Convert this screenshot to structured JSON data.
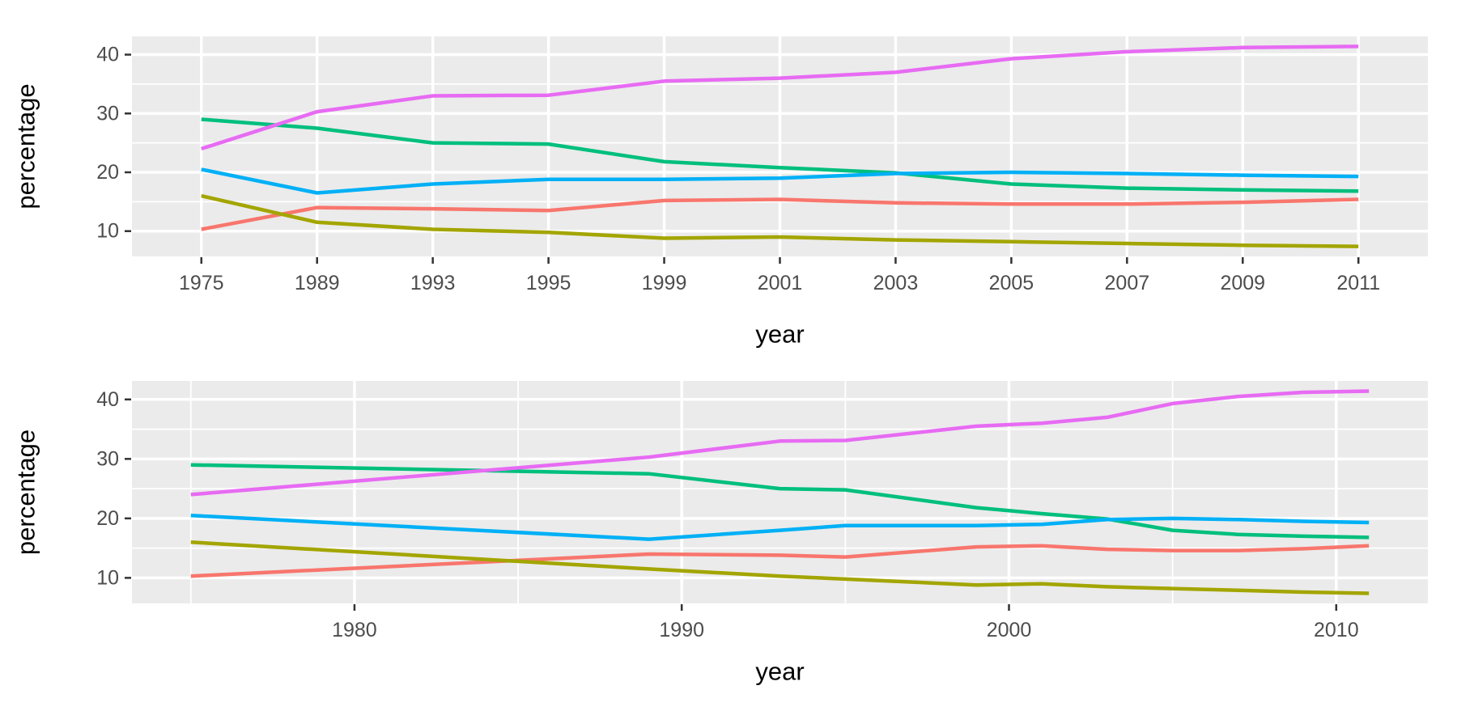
{
  "figure": {
    "background": "#FFFFFF",
    "description": "Two stacked ggplot-style line charts of the same five percentage series; top chart uses a discrete year axis, bottom chart uses a continuous year axis"
  },
  "style": {
    "panel_background": "#EBEBEB",
    "grid_color": "#FFFFFF",
    "tick_mark_color": "#333333",
    "tick_label_color": "#4D4D4D",
    "axis_title_color": "#000000",
    "series_palette": [
      "#F8766D",
      "#A3A500",
      "#00BF7D",
      "#00B0F6",
      "#E76BF3"
    ]
  },
  "chart_data": [
    {
      "type": "line",
      "x_type": "discrete",
      "title": "",
      "xlabel": "year",
      "ylabel": "percentage",
      "x": [
        1975,
        1989,
        1993,
        1995,
        1999,
        2001,
        2003,
        2005,
        2007,
        2009,
        2011
      ],
      "x_tick_labels": [
        "1975",
        "1989",
        "1993",
        "1995",
        "1999",
        "2001",
        "2003",
        "2005",
        "2007",
        "2009",
        "2011"
      ],
      "y_tick_labels": [
        "10",
        "20",
        "30",
        "40"
      ],
      "y_major": [
        10,
        20,
        30,
        40
      ],
      "y_minor": [
        15,
        25,
        35
      ],
      "ylim": [
        5.7,
        43.1
      ],
      "grid": true,
      "legend": "none",
      "series": [
        {
          "name": "red",
          "color": "#F8766D",
          "values": [
            10.3,
            14.0,
            13.8,
            13.5,
            15.2,
            15.4,
            14.8,
            14.6,
            14.6,
            14.9,
            15.4
          ]
        },
        {
          "name": "olive",
          "color": "#A3A500",
          "values": [
            16.0,
            11.5,
            10.3,
            9.8,
            8.8,
            9.0,
            8.5,
            8.2,
            7.9,
            7.6,
            7.4
          ]
        },
        {
          "name": "green",
          "color": "#00BF7D",
          "values": [
            29.0,
            27.5,
            25.0,
            24.8,
            21.8,
            20.8,
            19.9,
            18.0,
            17.3,
            17.0,
            16.8
          ]
        },
        {
          "name": "blue",
          "color": "#00B0F6",
          "values": [
            20.5,
            16.5,
            18.0,
            18.8,
            18.8,
            19.0,
            19.8,
            20.0,
            19.8,
            19.5,
            19.3
          ]
        },
        {
          "name": "magenta",
          "color": "#E76BF3",
          "values": [
            24.0,
            30.3,
            33.0,
            33.1,
            35.5,
            36.0,
            37.0,
            39.3,
            40.5,
            41.2,
            41.4
          ]
        }
      ]
    },
    {
      "type": "line",
      "x_type": "continuous",
      "title": "",
      "xlabel": "year",
      "ylabel": "percentage",
      "x": [
        1975,
        1989,
        1993,
        1995,
        1999,
        2001,
        2003,
        2005,
        2007,
        2009,
        2011
      ],
      "x_major": [
        1980,
        1990,
        2000,
        2010
      ],
      "x_minor": [
        1975,
        1985,
        1995,
        2005
      ],
      "x_tick_labels": [
        "1980",
        "1990",
        "2000",
        "2010"
      ],
      "y_tick_labels": [
        "10",
        "20",
        "30",
        "40"
      ],
      "y_major": [
        10,
        20,
        30,
        40
      ],
      "y_minor": [
        15,
        25,
        35
      ],
      "xlim": [
        1973.2,
        2012.8
      ],
      "ylim": [
        5.7,
        43.1
      ],
      "grid": true,
      "legend": "none",
      "series": [
        {
          "name": "red",
          "color": "#F8766D",
          "values": [
            10.3,
            14.0,
            13.8,
            13.5,
            15.2,
            15.4,
            14.8,
            14.6,
            14.6,
            14.9,
            15.4
          ]
        },
        {
          "name": "olive",
          "color": "#A3A500",
          "values": [
            16.0,
            11.5,
            10.3,
            9.8,
            8.8,
            9.0,
            8.5,
            8.2,
            7.9,
            7.6,
            7.4
          ]
        },
        {
          "name": "green",
          "color": "#00BF7D",
          "values": [
            29.0,
            27.5,
            25.0,
            24.8,
            21.8,
            20.8,
            19.9,
            18.0,
            17.3,
            17.0,
            16.8
          ]
        },
        {
          "name": "blue",
          "color": "#00B0F6",
          "values": [
            20.5,
            16.5,
            18.0,
            18.8,
            18.8,
            19.0,
            19.8,
            20.0,
            19.8,
            19.5,
            19.3
          ]
        },
        {
          "name": "magenta",
          "color": "#E76BF3",
          "values": [
            24.0,
            30.3,
            33.0,
            33.1,
            35.5,
            36.0,
            37.0,
            39.3,
            40.5,
            41.2,
            41.4
          ]
        }
      ]
    }
  ]
}
